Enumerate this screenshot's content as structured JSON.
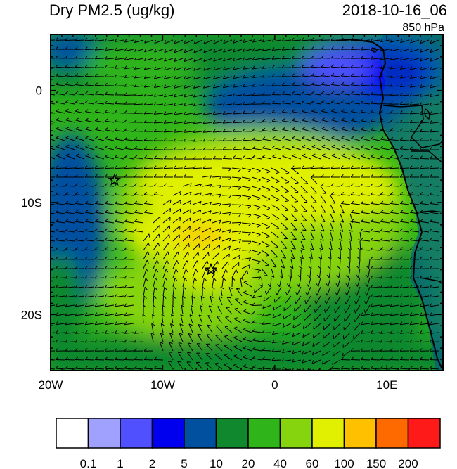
{
  "header": {
    "title": "Dry PM2.5 (ug/kg)",
    "datetime": "2018-10-16_06",
    "level": "850 hPa"
  },
  "map": {
    "lon_range": [
      -20,
      15
    ],
    "lat_range": [
      -25,
      5
    ],
    "x_ticks": [
      {
        "value": -20,
        "label": "20W"
      },
      {
        "value": -10,
        "label": "10W"
      },
      {
        "value": 0,
        "label": "0"
      },
      {
        "value": 10,
        "label": "10E"
      }
    ],
    "y_ticks": [
      {
        "value": 0,
        "label": "0"
      },
      {
        "value": -10,
        "label": "10S"
      },
      {
        "value": -20,
        "label": "20S"
      }
    ],
    "stars": [
      {
        "lon": -14.3,
        "lat": -8.0
      },
      {
        "lon": -5.7,
        "lat": -16.0
      }
    ]
  },
  "colorbar": {
    "levels": [
      "0.1",
      "1",
      "2",
      "5",
      "10",
      "20",
      "40",
      "60",
      "100",
      "150",
      "200"
    ],
    "colors": [
      "#ffffff",
      "#a0a0ff",
      "#5050ff",
      "#0000ee",
      "#0050a0",
      "#10882e",
      "#2fb41a",
      "#86d40e",
      "#e0f000",
      "#ffc000",
      "#ff6a00",
      "#ff1a1a"
    ]
  }
}
